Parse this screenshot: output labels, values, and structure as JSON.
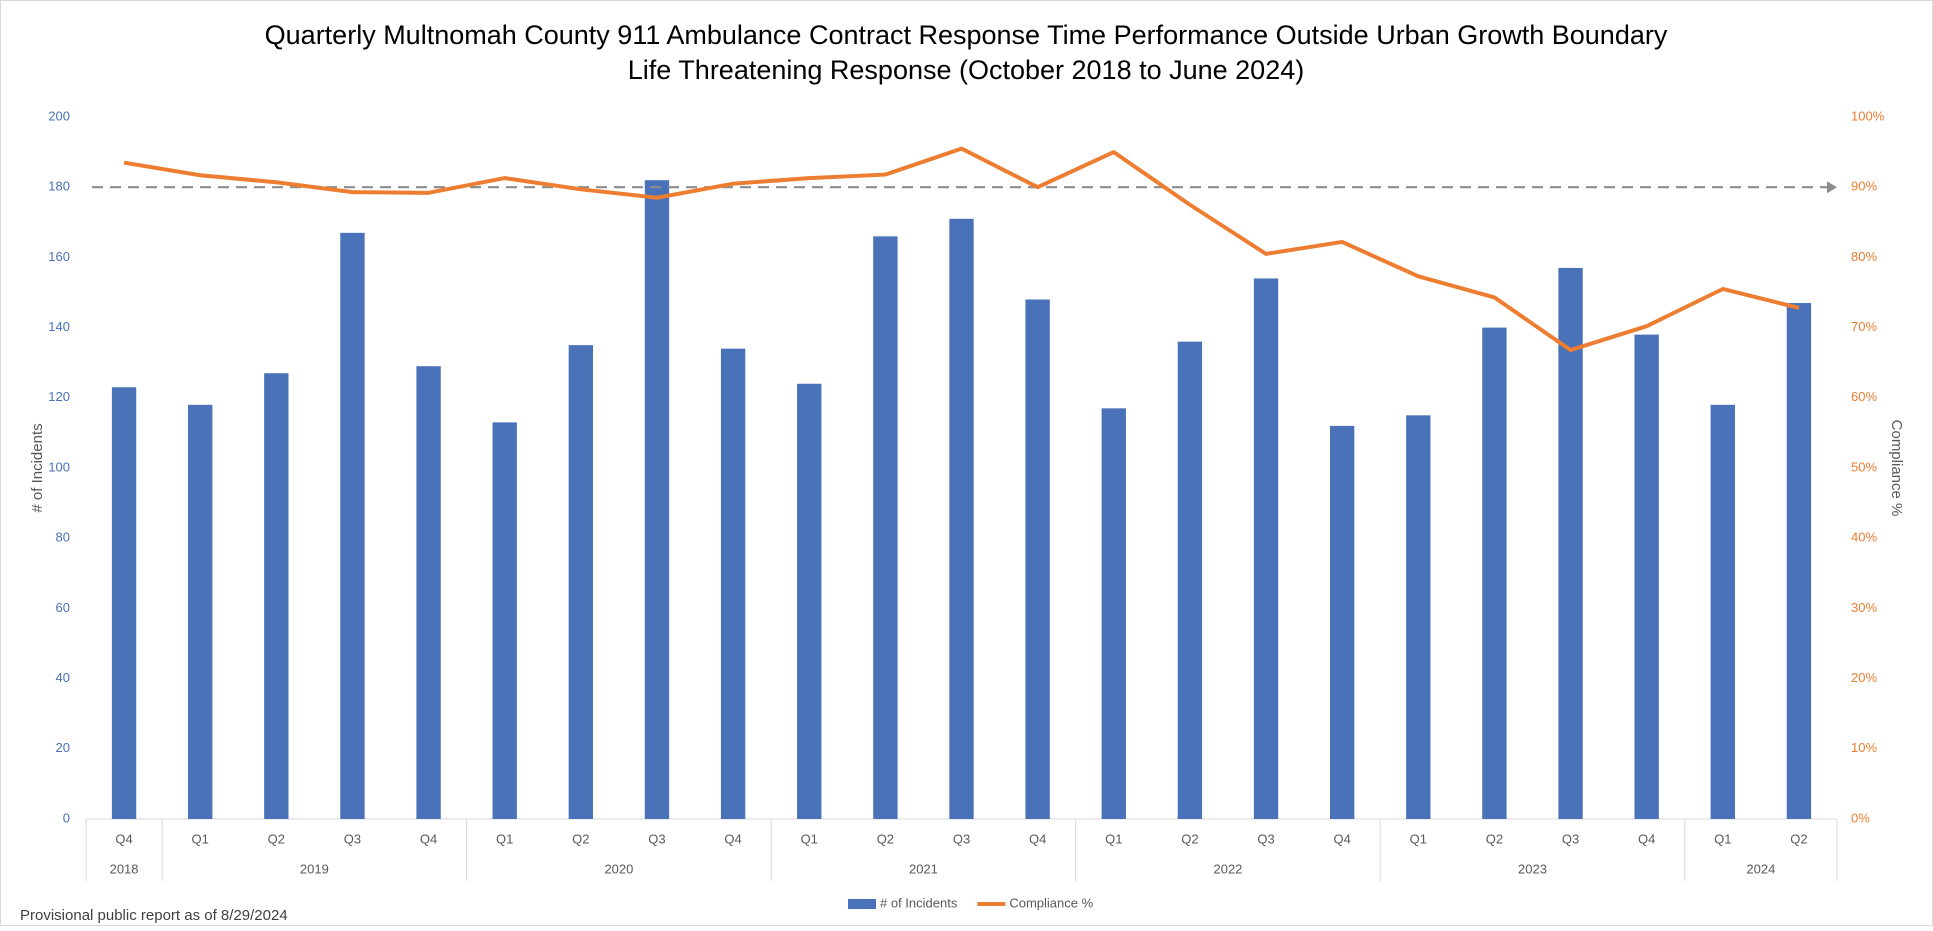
{
  "chart_data": {
    "type": "bar-line",
    "title": [
      "Quarterly Multnomah County 911 Ambulance Contract Response Time Performance Outside Urban Growth Boundary",
      "Life Threatening Response (October 2018 to June 2024)"
    ],
    "y_label": "# of Incidents",
    "y2_label": "Compliance %",
    "footer": "Provisional public report as of 8/29/2024",
    "category_groups": [
      {
        "label": "2018",
        "categories": [
          "Q4"
        ]
      },
      {
        "label": "2019",
        "categories": [
          "Q1",
          "Q2",
          "Q3",
          "Q4"
        ]
      },
      {
        "label": "2020",
        "categories": [
          "Q1",
          "Q2",
          "Q3",
          "Q4"
        ]
      },
      {
        "label": "2021",
        "categories": [
          "Q1",
          "Q2",
          "Q3",
          "Q4"
        ]
      },
      {
        "label": "2022",
        "categories": [
          "Q1",
          "Q2",
          "Q3",
          "Q4"
        ]
      },
      {
        "label": "2023",
        "categories": [
          "Q1",
          "Q2",
          "Q3",
          "Q4"
        ]
      },
      {
        "label": "2024",
        "categories": [
          "Q1",
          "Q2"
        ]
      }
    ],
    "series": [
      {
        "name": "# of Incidents",
        "type": "bar",
        "color": "#4a72b8",
        "values": [
          123,
          118,
          127,
          167,
          129,
          113,
          135,
          182,
          134,
          124,
          166,
          171,
          148,
          117,
          136,
          154,
          112,
          115,
          140,
          157,
          138,
          118,
          147
        ]
      },
      {
        "name": "Compliance %",
        "type": "line",
        "axis": "y2",
        "color": "#ed7d31",
        "values": [
          93.5,
          91.7,
          90.7,
          89.3,
          89.2,
          91.3,
          89.7,
          88.5,
          90.5,
          91.3,
          91.8,
          95.5,
          90,
          95,
          87.5,
          80.5,
          82.2,
          77.3,
          74.3,
          66.8,
          70.2,
          75.5,
          72.8
        ]
      }
    ],
    "target_line": {
      "axis": "y2",
      "value": 90,
      "color": "#8c8c8c"
    },
    "ylim": [
      0,
      200
    ],
    "yticks": [
      0,
      20,
      40,
      60,
      80,
      100,
      120,
      140,
      160,
      180,
      200
    ],
    "y2lim": [
      0,
      100
    ],
    "y2ticks": [
      {
        "value": 0,
        "label": "0%"
      },
      {
        "value": 10,
        "label": "10%"
      },
      {
        "value": 20,
        "label": "20%"
      },
      {
        "value": 30,
        "label": "30%"
      },
      {
        "value": 40,
        "label": "40%"
      },
      {
        "value": 50,
        "label": "50%"
      },
      {
        "value": 60,
        "label": "60%"
      },
      {
        "value": 70,
        "label": "70%"
      },
      {
        "value": 80,
        "label": "80%"
      },
      {
        "value": 90,
        "label": "90%"
      },
      {
        "value": 100,
        "label": "100%"
      }
    ]
  }
}
